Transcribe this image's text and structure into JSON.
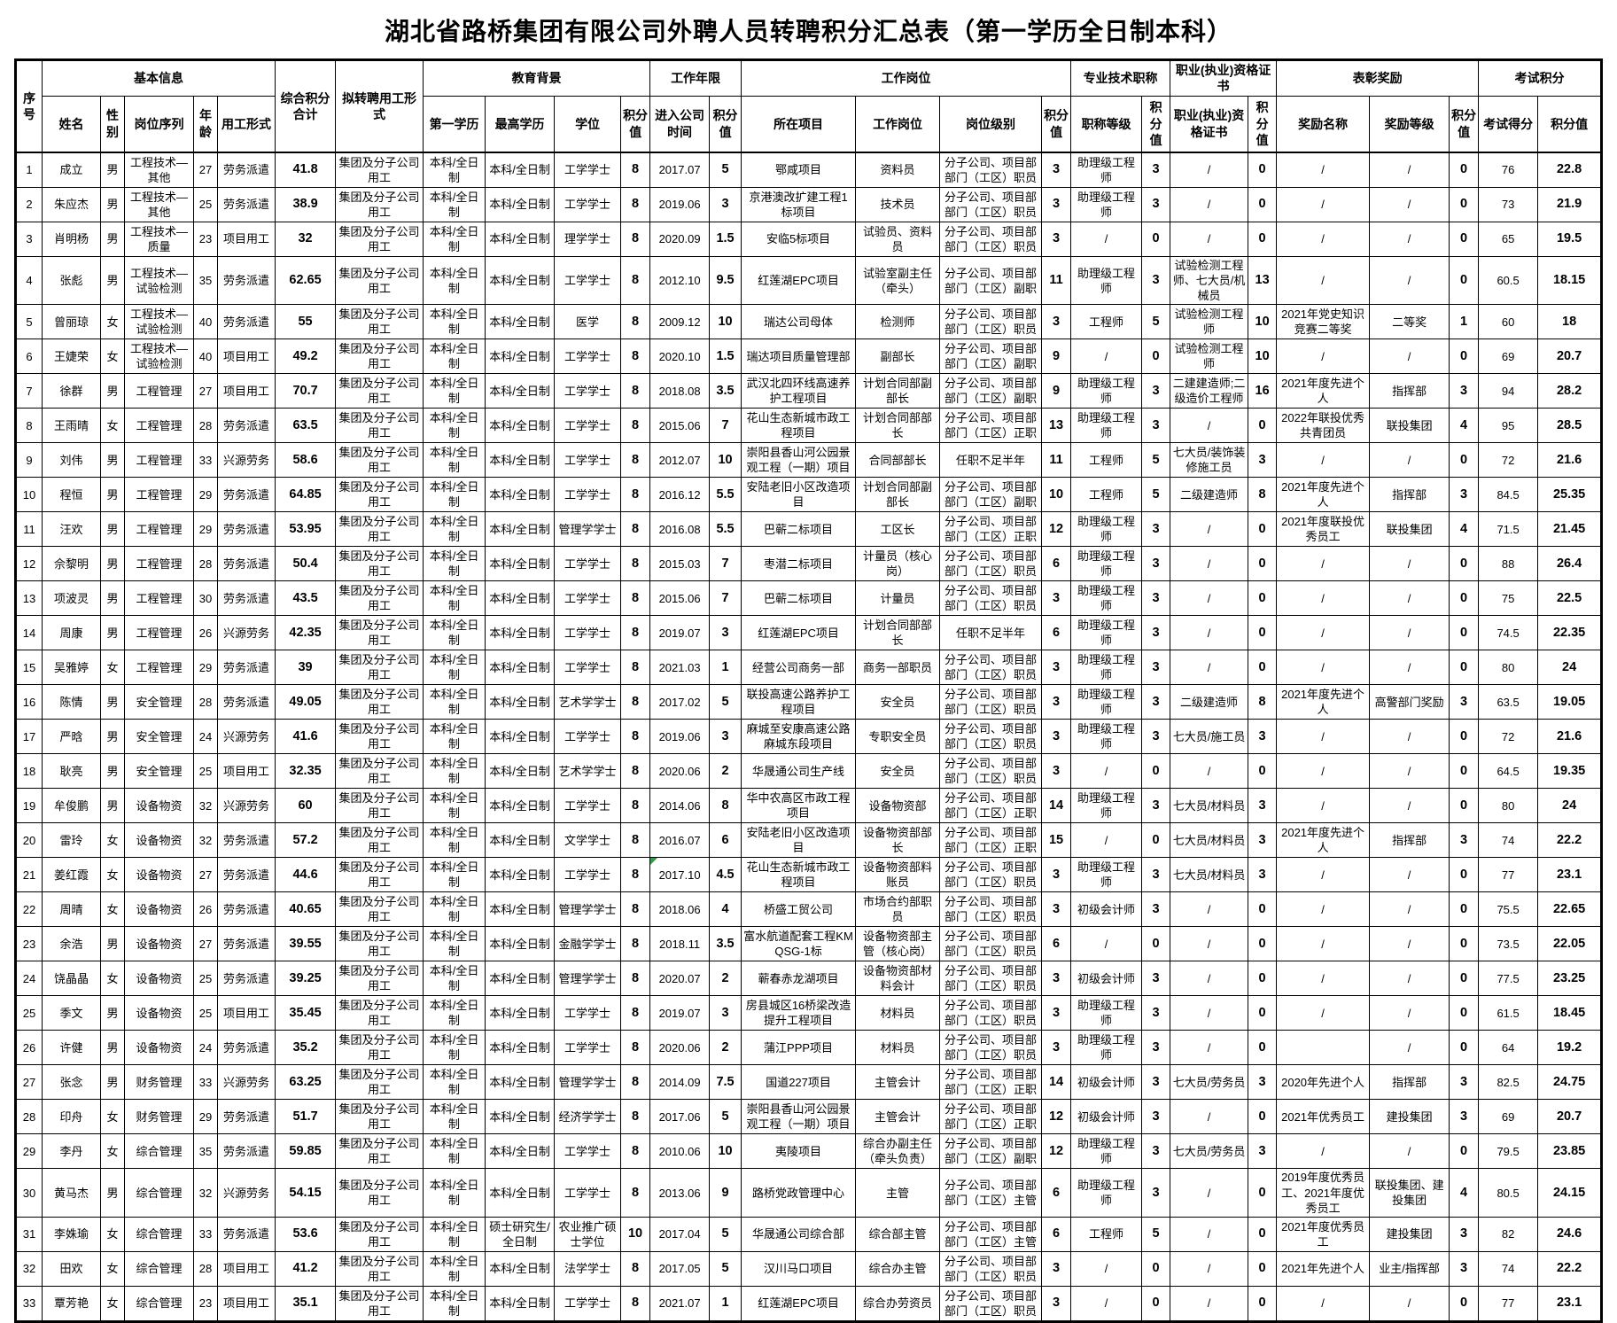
{
  "title": "湖北省路桥集团有限公司外聘人员转聘积分汇总表（第一学历全日制本科）",
  "header": {
    "groups": [
      {
        "label": "序号",
        "rowspan": 2
      },
      {
        "label": "基本信息",
        "colspan": 5
      },
      {
        "label": "综合积分合计",
        "rowspan": 2
      },
      {
        "label": "拟转聘用工形式",
        "rowspan": 2
      },
      {
        "label": "教育背景",
        "colspan": 4
      },
      {
        "label": "工作年限",
        "colspan": 2
      },
      {
        "label": "工作岗位",
        "colspan": 4
      },
      {
        "label": "专业技术职称",
        "colspan": 2
      },
      {
        "label": "职业(执业)资格证书",
        "colspan": 2
      },
      {
        "label": "表彰奖励",
        "colspan": 3
      },
      {
        "label": "考试积分",
        "colspan": 2
      }
    ],
    "sub": [
      "姓名",
      "性别",
      "岗位序列",
      "年龄",
      "用工形式",
      "第一学历",
      "最高学历",
      "学位",
      "积分值",
      "进入公司时间",
      "积分值",
      "所在项目",
      "工作岗位",
      "岗位级别",
      "积分值",
      "职称等级",
      "积分值",
      "职业(执业)资格证书",
      "积分值",
      "奖励名称",
      "奖励等级",
      "积分值",
      "考试得分",
      "积分值"
    ]
  },
  "rows": [
    [
      "1",
      "成立",
      "男",
      "工程技术—其他",
      "27",
      "劳务派遣",
      "41.8",
      "集团及分子公司用工",
      "本科/全日制",
      "本科/全日制",
      "工学学士",
      "8",
      "2017.07",
      "5",
      "鄂咸项目",
      "资料员",
      "分子公司、项目部部门（工区）职员",
      "3",
      "助理级工程师",
      "3",
      "/",
      "0",
      "/",
      "/",
      "0",
      "76",
      "22.8"
    ],
    [
      "2",
      "朱应杰",
      "男",
      "工程技术—其他",
      "25",
      "劳务派遣",
      "38.9",
      "集团及分子公司用工",
      "本科/全日制",
      "本科/全日制",
      "工学学士",
      "8",
      "2019.06",
      "3",
      "京港澳改扩建工程1标项目",
      "技术员",
      "分子公司、项目部部门（工区）职员",
      "3",
      "助理级工程师",
      "3",
      "/",
      "0",
      "/",
      "/",
      "0",
      "73",
      "21.9"
    ],
    [
      "3",
      "肖明杨",
      "男",
      "工程技术—质量",
      "23",
      "项目用工",
      "32",
      "集团及分子公司用工",
      "本科/全日制",
      "本科/全日制",
      "理学学士",
      "8",
      "2020.09",
      "1.5",
      "安临5标项目",
      "试验员、资料员",
      "分子公司、项目部部门（工区）职员",
      "3",
      "/",
      "0",
      "/",
      "0",
      "/",
      "/",
      "0",
      "65",
      "19.5"
    ],
    [
      "4",
      "张彪",
      "男",
      "工程技术—试验检测",
      "35",
      "劳务派遣",
      "62.65",
      "集团及分子公司用工",
      "本科/全日制",
      "本科/全日制",
      "工学学士",
      "8",
      "2012.10",
      "9.5",
      "红莲湖EPC项目",
      "试验室副主任（牵头）",
      "分子公司、项目部部门（工区）副职",
      "11",
      "助理级工程师",
      "3",
      "试验检测工程师、七大员/机械员",
      "13",
      "/",
      "/",
      "0",
      "60.5",
      "18.15"
    ],
    [
      "5",
      "曾丽琼",
      "女",
      "工程技术—试验检测",
      "40",
      "劳务派遣",
      "55",
      "集团及分子公司用工",
      "本科/全日制",
      "本科/全日制",
      "医学",
      "8",
      "2009.12",
      "10",
      "瑞达公司母体",
      "检测师",
      "分子公司、项目部部门（工区）职员",
      "3",
      "工程师",
      "5",
      "试验检测工程师",
      "10",
      "2021年党史知识竞赛二等奖",
      "二等奖",
      "1",
      "60",
      "18"
    ],
    [
      "6",
      "王婕荣",
      "女",
      "工程技术—试验检测",
      "40",
      "项目用工",
      "49.2",
      "集团及分子公司用工",
      "本科/全日制",
      "本科/全日制",
      "工学学士",
      "8",
      "2020.10",
      "1.5",
      "瑞达项目质量管理部",
      "副部长",
      "分子公司、项目部部门（工区）副职",
      "9",
      "/",
      "0",
      "试验检测工程师",
      "10",
      "/",
      "/",
      "0",
      "69",
      "20.7"
    ],
    [
      "7",
      "徐群",
      "男",
      "工程管理",
      "27",
      "项目用工",
      "70.7",
      "集团及分子公司用工",
      "本科/全日制",
      "本科/全日制",
      "工学学士",
      "8",
      "2018.08",
      "3.5",
      "武汉北四环线高速养护工程项目",
      "计划合同部副部长",
      "分子公司、项目部部门（工区）副职",
      "9",
      "助理级工程师",
      "3",
      "二建建造师;二级造价工程师",
      "16",
      "2021年度先进个人",
      "指挥部",
      "3",
      "94",
      "28.2"
    ],
    [
      "8",
      "王雨晴",
      "女",
      "工程管理",
      "28",
      "劳务派遣",
      "63.5",
      "集团及分子公司用工",
      "本科/全日制",
      "本科/全日制",
      "工学学士",
      "8",
      "2015.06",
      "7",
      "花山生态新城市政工程项目",
      "计划合同部部长",
      "分子公司、项目部部门（工区）正职",
      "13",
      "助理级工程师",
      "3",
      "/",
      "0",
      "2022年联投优秀共青团员",
      "联投集团",
      "4",
      "95",
      "28.5"
    ],
    [
      "9",
      "刘伟",
      "男",
      "工程管理",
      "33",
      "兴源劳务",
      "58.6",
      "集团及分子公司用工",
      "本科/全日制",
      "本科/全日制",
      "工学学士",
      "8",
      "2012.07",
      "10",
      "崇阳县香山河公园景观工程（一期）项目",
      "合同部部长",
      "任职不足半年",
      "11",
      "工程师",
      "5",
      "七大员/装饰装修施工员",
      "3",
      "/",
      "/",
      "0",
      "72",
      "21.6"
    ],
    [
      "10",
      "程恒",
      "男",
      "工程管理",
      "29",
      "劳务派遣",
      "64.85",
      "集团及分子公司用工",
      "本科/全日制",
      "本科/全日制",
      "工学学士",
      "8",
      "2016.12",
      "5.5",
      "安陆老旧小区改造项目",
      "计划合同部副部长",
      "分子公司、项目部部门（工区）副职",
      "10",
      "工程师",
      "5",
      "二级建造师",
      "8",
      "2021年度先进个人",
      "指挥部",
      "3",
      "84.5",
      "25.35"
    ],
    [
      "11",
      "汪欢",
      "男",
      "工程管理",
      "29",
      "劳务派遣",
      "53.95",
      "集团及分子公司用工",
      "本科/全日制",
      "本科/全日制",
      "管理学学士",
      "8",
      "2016.08",
      "5.5",
      "巴蕲二标项目",
      "工区长",
      "分子公司、项目部部门（工区）正职",
      "12",
      "助理级工程师",
      "3",
      "/",
      "0",
      "2021年度联投优秀员工",
      "联投集团",
      "4",
      "71.5",
      "21.45"
    ],
    [
      "12",
      "佘黎明",
      "男",
      "工程管理",
      "28",
      "劳务派遣",
      "50.4",
      "集团及分子公司用工",
      "本科/全日制",
      "本科/全日制",
      "工学学士",
      "8",
      "2015.03",
      "7",
      "枣潜二标项目",
      "计量员（核心岗）",
      "分子公司、项目部部门（工区）职员",
      "6",
      "助理级工程师",
      "3",
      "/",
      "0",
      "/",
      "/",
      "0",
      "88",
      "26.4"
    ],
    [
      "13",
      "项波灵",
      "男",
      "工程管理",
      "30",
      "劳务派遣",
      "43.5",
      "集团及分子公司用工",
      "本科/全日制",
      "本科/全日制",
      "工学学士",
      "8",
      "2015.06",
      "7",
      "巴蕲二标项目",
      "计量员",
      "分子公司、项目部部门（工区）职员",
      "3",
      "助理级工程师",
      "3",
      "/",
      "0",
      "/",
      "/",
      "0",
      "75",
      "22.5"
    ],
    [
      "14",
      "周康",
      "男",
      "工程管理",
      "26",
      "兴源劳务",
      "42.35",
      "集团及分子公司用工",
      "本科/全日制",
      "本科/全日制",
      "工学学士",
      "8",
      "2019.07",
      "3",
      "红莲湖EPC项目",
      "计划合同部部长",
      "任职不足半年",
      "6",
      "助理级工程师",
      "3",
      "/",
      "0",
      "/",
      "/",
      "0",
      "74.5",
      "22.35"
    ],
    [
      "15",
      "吴雅婷",
      "女",
      "工程管理",
      "29",
      "劳务派遣",
      "39",
      "集团及分子公司用工",
      "本科/全日制",
      "本科/全日制",
      "工学学士",
      "8",
      "2021.03",
      "1",
      "经营公司商务一部",
      "商务一部职员",
      "分子公司、项目部部门（工区）职员",
      "3",
      "助理级工程师",
      "3",
      "/",
      "0",
      "/",
      "/",
      "0",
      "80",
      "24"
    ],
    [
      "16",
      "陈情",
      "男",
      "安全管理",
      "28",
      "劳务派遣",
      "49.05",
      "集团及分子公司用工",
      "本科/全日制",
      "本科/全日制",
      "艺术学学士",
      "8",
      "2017.02",
      "5",
      "联投高速公路养护工程项目",
      "安全员",
      "分子公司、项目部部门（工区）职员",
      "3",
      "助理级工程师",
      "3",
      "二级建造师",
      "8",
      "2021年度先进个人",
      "高警部门奖励",
      "3",
      "63.5",
      "19.05"
    ],
    [
      "17",
      "严晗",
      "男",
      "安全管理",
      "24",
      "兴源劳务",
      "41.6",
      "集团及分子公司用工",
      "本科/全日制",
      "本科/全日制",
      "工学学士",
      "8",
      "2019.06",
      "3",
      "麻城至安康高速公路麻城东段项目",
      "专职安全员",
      "分子公司、项目部部门（工区）职员",
      "3",
      "助理级工程师",
      "3",
      "七大员/施工员",
      "3",
      "/",
      "/",
      "0",
      "72",
      "21.6"
    ],
    [
      "18",
      "耿亮",
      "男",
      "安全管理",
      "25",
      "项目用工",
      "32.35",
      "集团及分子公司用工",
      "本科/全日制",
      "本科/全日制",
      "艺术学学士",
      "8",
      "2020.06",
      "2",
      "华晟通公司生产线",
      "安全员",
      "分子公司、项目部部门（工区）职员",
      "3",
      "/",
      "0",
      "/",
      "0",
      "/",
      "/",
      "0",
      "64.5",
      "19.35"
    ],
    [
      "19",
      "牟俊鹏",
      "男",
      "设备物资",
      "32",
      "兴源劳务",
      "60",
      "集团及分子公司用工",
      "本科/全日制",
      "本科/全日制",
      "工学学士",
      "8",
      "2014.06",
      "8",
      "华中农高区市政工程项目",
      "设备物资部",
      "分子公司、项目部部门（工区）正职",
      "14",
      "助理级工程师",
      "3",
      "七大员/材料员",
      "3",
      "/",
      "/",
      "0",
      "80",
      "24"
    ],
    [
      "20",
      "雷玲",
      "女",
      "设备物资",
      "32",
      "劳务派遣",
      "57.2",
      "集团及分子公司用工",
      "本科/全日制",
      "本科/全日制",
      "文学学士",
      "8",
      "2016.07",
      "6",
      "安陆老旧小区改造项目",
      "设备物资部部长",
      "分子公司、项目部部门（工区）正职",
      "15",
      "/",
      "0",
      "七大员/材料员",
      "3",
      "2021年度先进个人",
      "指挥部",
      "3",
      "74",
      "22.2"
    ],
    [
      "21",
      "姜红霞",
      "女",
      "设备物资",
      "27",
      "劳务派遣",
      "44.6",
      "集团及分子公司用工",
      "本科/全日制",
      "本科/全日制",
      "工学学士",
      "8",
      "2017.10",
      "4.5",
      "花山生态新城市政工程项目",
      "设备物资部料账员",
      "分子公司、项目部部门（工区）职员",
      "3",
      "助理级工程师",
      "3",
      "七大员/材料员",
      "3",
      "/",
      "/",
      "0",
      "77",
      "23.1"
    ],
    [
      "22",
      "周晴",
      "女",
      "设备物资",
      "26",
      "劳务派遣",
      "40.65",
      "集团及分子公司用工",
      "本科/全日制",
      "本科/全日制",
      "管理学学士",
      "8",
      "2018.06",
      "4",
      "桥盛工贸公司",
      "市场合约部职员",
      "分子公司、项目部部门（工区）职员",
      "3",
      "初级会计师",
      "3",
      "/",
      "0",
      "/",
      "/",
      "0",
      "75.5",
      "22.65"
    ],
    [
      "23",
      "余浩",
      "男",
      "设备物资",
      "27",
      "劳务派遣",
      "39.55",
      "集团及分子公司用工",
      "本科/全日制",
      "本科/全日制",
      "金融学学士",
      "8",
      "2018.11",
      "3.5",
      "富水航道配套工程KMQSG-1标",
      "设备物资部主管（核心岗）",
      "分子公司、项目部部门（工区）职员",
      "6",
      "/",
      "0",
      "/",
      "0",
      "/",
      "/",
      "0",
      "73.5",
      "22.05"
    ],
    [
      "24",
      "饶晶晶",
      "女",
      "设备物资",
      "25",
      "劳务派遣",
      "39.25",
      "集团及分子公司用工",
      "本科/全日制",
      "本科/全日制",
      "管理学学士",
      "8",
      "2020.07",
      "2",
      "蕲春赤龙湖项目",
      "设备物资部材料会计",
      "分子公司、项目部部门（工区）职员",
      "3",
      "初级会计师",
      "3",
      "/",
      "0",
      "/",
      "/",
      "0",
      "77.5",
      "23.25"
    ],
    [
      "25",
      "季文",
      "男",
      "设备物资",
      "25",
      "项目用工",
      "35.45",
      "集团及分子公司用工",
      "本科/全日制",
      "本科/全日制",
      "工学学士",
      "8",
      "2019.07",
      "3",
      "房县城区16桥梁改造提升工程项目",
      "材料员",
      "分子公司、项目部部门（工区）职员",
      "3",
      "助理级工程师",
      "3",
      "/",
      "0",
      "/",
      "/",
      "0",
      "61.5",
      "18.45"
    ],
    [
      "26",
      "许健",
      "男",
      "设备物资",
      "24",
      "劳务派遣",
      "35.2",
      "集团及分子公司用工",
      "本科/全日制",
      "本科/全日制",
      "工学学士",
      "8",
      "2020.06",
      "2",
      "蒲江PPP项目",
      "材料员",
      "分子公司、项目部部门（工区）职员",
      "3",
      "助理级工程师",
      "3",
      "/",
      "0",
      "",
      "/",
      "0",
      "64",
      "19.2"
    ],
    [
      "27",
      "张念",
      "男",
      "财务管理",
      "33",
      "兴源劳务",
      "63.25",
      "集团及分子公司用工",
      "本科/全日制",
      "本科/全日制",
      "管理学学士",
      "8",
      "2014.09",
      "7.5",
      "国道227项目",
      "主管会计",
      "分子公司、项目部部门（工区）正职",
      "14",
      "初级会计师",
      "3",
      "七大员/劳务员",
      "3",
      "2020年先进个人",
      "指挥部",
      "3",
      "82.5",
      "24.75"
    ],
    [
      "28",
      "印舟",
      "女",
      "财务管理",
      "29",
      "劳务派遣",
      "51.7",
      "集团及分子公司用工",
      "本科/全日制",
      "本科/全日制",
      "经济学学士",
      "8",
      "2017.06",
      "5",
      "崇阳县香山河公园景观工程（一期）项目",
      "主管会计",
      "分子公司、项目部部门（工区）正职",
      "12",
      "初级会计师",
      "3",
      "/",
      "0",
      "2021年优秀员工",
      "建投集团",
      "3",
      "69",
      "20.7"
    ],
    [
      "29",
      "李丹",
      "女",
      "综合管理",
      "35",
      "劳务派遣",
      "59.85",
      "集团及分子公司用工",
      "本科/全日制",
      "本科/全日制",
      "工学学士",
      "8",
      "2010.06",
      "10",
      "夷陵项目",
      "综合办副主任（牵头负责）",
      "分子公司、项目部部门（工区）副职",
      "12",
      "助理级工程师",
      "3",
      "七大员/劳务员",
      "3",
      "/",
      "/",
      "0",
      "79.5",
      "23.85"
    ],
    [
      "30",
      "黄马杰",
      "男",
      "综合管理",
      "32",
      "兴源劳务",
      "54.15",
      "集团及分子公司用工",
      "本科/全日制",
      "本科/全日制",
      "工学学士",
      "8",
      "2013.06",
      "9",
      "路桥党政管理中心",
      "主管",
      "分子公司、项目部部门（工区）主管",
      "6",
      "助理级工程师",
      "3",
      "/",
      "0",
      "2019年度优秀员工、2021年度优秀员工",
      "联投集团、建投集团",
      "4",
      "80.5",
      "24.15"
    ],
    [
      "31",
      "李姝瑜",
      "女",
      "综合管理",
      "33",
      "劳务派遣",
      "53.6",
      "集团及分子公司用工",
      "本科/全日制",
      "硕士研究生/全日制",
      "农业推广硕士学位",
      "10",
      "2017.04",
      "5",
      "华晟通公司综合部",
      "综合部主管",
      "分子公司、项目部部门（工区）主管",
      "6",
      "工程师",
      "5",
      "/",
      "0",
      "2021年度优秀员工",
      "建投集团",
      "3",
      "82",
      "24.6"
    ],
    [
      "32",
      "田欢",
      "女",
      "综合管理",
      "28",
      "项目用工",
      "41.2",
      "集团及分子公司用工",
      "本科/全日制",
      "本科/全日制",
      "法学学士",
      "8",
      "2017.05",
      "5",
      "汉川马口项目",
      "综合办主管",
      "分子公司、项目部部门（工区）职员",
      "3",
      "/",
      "0",
      "/",
      "0",
      "2021年先进个人",
      "业主/指挥部",
      "3",
      "74",
      "22.2"
    ],
    [
      "33",
      "覃芳艳",
      "女",
      "综合管理",
      "23",
      "项目用工",
      "35.1",
      "集团及分子公司用工",
      "本科/全日制",
      "本科/全日制",
      "工学学士",
      "8",
      "2021.07",
      "1",
      "红莲湖EPC项目",
      "综合办劳资员",
      "分子公司、项目部部门（工区）职员",
      "3",
      "/",
      "0",
      "/",
      "0",
      "/",
      "/",
      "0",
      "77",
      "23.1"
    ]
  ],
  "comment_marker": {
    "row": 21,
    "column": "entry-date",
    "color": "#2f9e49"
  }
}
